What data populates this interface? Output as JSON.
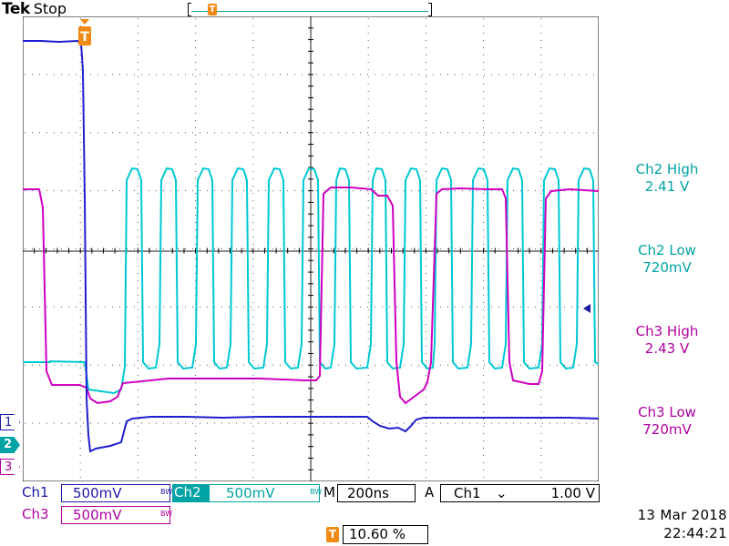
{
  "header": {
    "brand": "Tek",
    "run_state": "Stop",
    "record_trigger_icon": "trigger-T-icon",
    "trigger_glyph": "T"
  },
  "colors": {
    "ch1": "#1a1aa6",
    "ch2": "#00a3a3",
    "ch3": "#b0009f",
    "trigger": "#f08a14"
  },
  "channel_markers": {
    "ch1": "1",
    "ch2": "2",
    "ch3": "3"
  },
  "measurements": [
    {
      "label": "Ch2 High",
      "value": "2.41 V",
      "channel": "ch2"
    },
    {
      "label": "Ch2 Low",
      "value": "720mV",
      "channel": "ch2"
    },
    {
      "label": "Ch3 High",
      "value": "2.43 V",
      "channel": "ch3"
    },
    {
      "label": "Ch3 Low",
      "value": "720mV",
      "channel": "ch3"
    }
  ],
  "status": {
    "ch1_label": "Ch1",
    "ch1_scale": "500mV",
    "ch2_label": "Ch2",
    "ch2_scale": "500mV",
    "ch3_label": "Ch3",
    "ch3_scale": "500mV",
    "bw_label": "BW",
    "timebase_label": "M",
    "timebase_value": "200ns",
    "trigger_mode": "A",
    "trigger_source": "Ch1",
    "trigger_slope_icon": "falling-edge-icon",
    "trigger_slope_glyph": "⌄",
    "trigger_level": "1.00 V",
    "trigger_position_glyph": "T",
    "trigger_position": "10.60 %"
  },
  "timestamp": {
    "date": "13 Mar  2018",
    "time": "22:44:21"
  }
}
